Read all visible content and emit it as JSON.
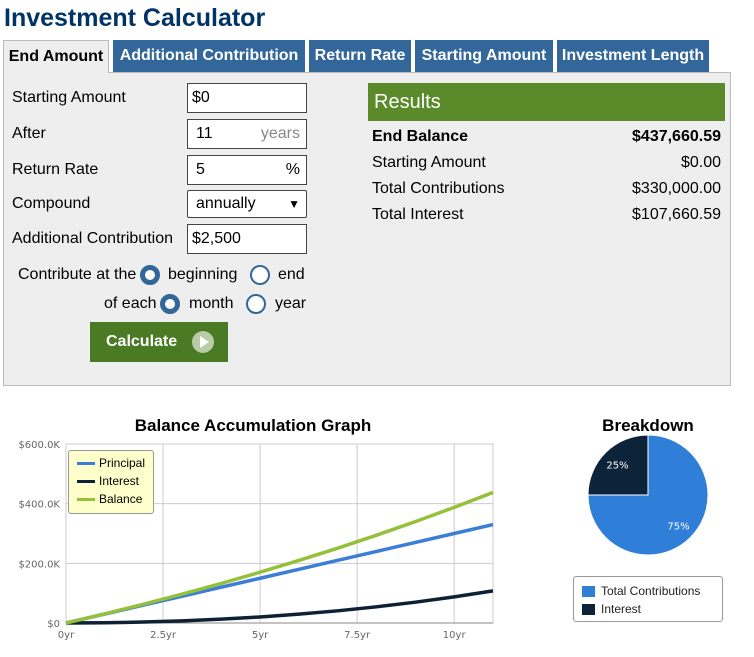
{
  "page_title": "Investment Calculator",
  "tabs": [
    {
      "label": "End Amount",
      "active": true
    },
    {
      "label": "Additional Contribution",
      "active": false
    },
    {
      "label": "Return Rate",
      "active": false
    },
    {
      "label": "Starting Amount",
      "active": false
    },
    {
      "label": "Investment Length",
      "active": false
    }
  ],
  "form": {
    "starting_amount": {
      "label": "Starting Amount",
      "value": "$0"
    },
    "after": {
      "label": "After",
      "value": "11",
      "unit": "years"
    },
    "return_rate": {
      "label": "Return Rate",
      "value": "5",
      "unit": "%"
    },
    "compound": {
      "label": "Compound",
      "value": "annually"
    },
    "additional_contribution": {
      "label": "Additional Contribution",
      "value": "$2,500"
    },
    "contribute_at": {
      "label": "Contribute at the",
      "options": [
        "beginning",
        "end"
      ],
      "selected": "beginning"
    },
    "of_each": {
      "label": "of each",
      "options": [
        "month",
        "year"
      ],
      "selected": "month"
    },
    "calculate_label": "Calculate"
  },
  "results": {
    "heading": "Results",
    "rows": [
      {
        "label": "End Balance",
        "value": "$437,660.59",
        "bold": true
      },
      {
        "label": "Starting Amount",
        "value": "$0.00"
      },
      {
        "label": "Total Contributions",
        "value": "$330,000.00"
      },
      {
        "label": "Total Interest",
        "value": "$107,660.59"
      }
    ]
  },
  "colors": {
    "principal": "#3b7dd8",
    "interest": "#0d2035",
    "balance": "#95c03a",
    "pie_contributions": "#2f7ed8",
    "pie_interest": "#0d233a"
  },
  "chart_data": [
    {
      "type": "line",
      "title": "Balance Accumulation Graph",
      "x_ticks": [
        "0yr",
        "2.5yr",
        "5yr",
        "7.5yr",
        "10yr"
      ],
      "y_ticks": [
        "$0",
        "$200.0K",
        "$400.0K",
        "$600.0K"
      ],
      "xlim": [
        0,
        11
      ],
      "ylim": [
        0,
        600000
      ],
      "x": [
        0,
        1,
        2,
        3,
        4,
        5,
        6,
        7,
        8,
        9,
        10,
        11
      ],
      "series": [
        {
          "name": "Principal",
          "values": [
            0,
            30000,
            60000,
            90000,
            120000,
            150000,
            180000,
            210000,
            240000,
            270000,
            300000,
            330000
          ]
        },
        {
          "name": "Interest",
          "values": [
            0,
            812,
            3165,
            7134,
            12803,
            20256,
            29583,
            40873,
            54231,
            69754,
            87554,
            107661
          ]
        },
        {
          "name": "Balance",
          "values": [
            0,
            30812,
            63165,
            97134,
            132803,
            170256,
            209583,
            250873,
            294231,
            339754,
            387554,
            437661
          ]
        }
      ],
      "legend": "top-left",
      "grid": true
    },
    {
      "type": "pie",
      "title": "Breakdown",
      "labels": [
        "Total Contributions",
        "Interest"
      ],
      "values": [
        75,
        25
      ],
      "data_labels": [
        "75%",
        "25%"
      ]
    }
  ]
}
